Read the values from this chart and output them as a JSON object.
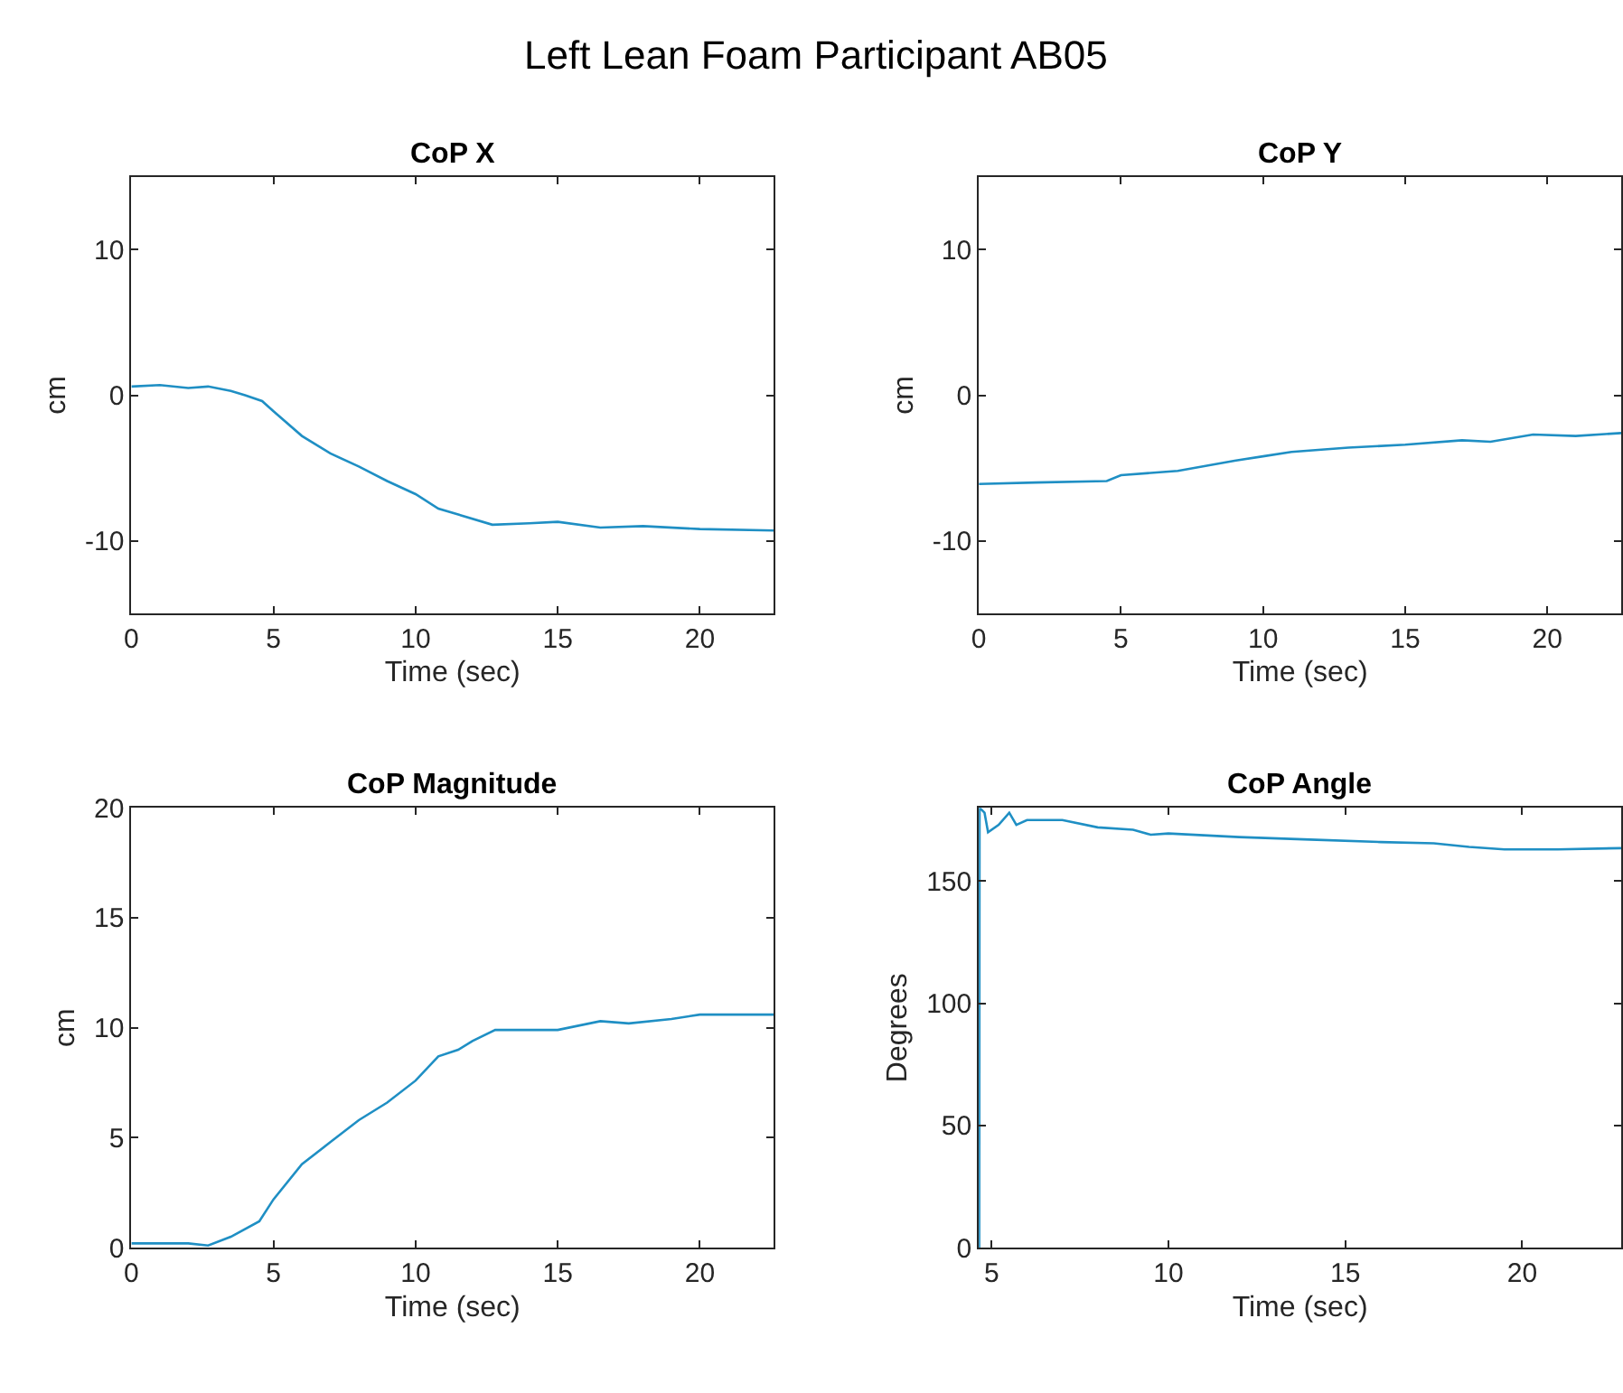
{
  "chart_data": [
    {
      "type": "line",
      "title": "CoP X",
      "xlabel": "Time (sec)",
      "ylabel": "cm",
      "annotations": [
        "Left Lean Foam Participant AB05"
      ],
      "xlim": [
        0,
        22.6
      ],
      "ylim": [
        -15,
        15
      ],
      "xticks": [
        0,
        5,
        10,
        15,
        20
      ],
      "yticks": [
        -10,
        0,
        10
      ],
      "grid": false,
      "series": [
        {
          "color": "#1f8fc4",
          "x": [
            0,
            1,
            2,
            2.7,
            3.5,
            4,
            4.6,
            5,
            6,
            7,
            8,
            9,
            10,
            10.8,
            11.5,
            12.7,
            14,
            15,
            16.5,
            18,
            20,
            22.6
          ],
          "values": [
            0.6,
            0.7,
            0.5,
            0.6,
            0.3,
            0,
            -0.4,
            -1.1,
            -2.8,
            -4,
            -4.9,
            -5.9,
            -6.8,
            -7.8,
            -8.2,
            -8.9,
            -8.8,
            -8.7,
            -9.1,
            -9,
            -9.2,
            -9.3
          ]
        }
      ]
    },
    {
      "type": "line",
      "title": "CoP Y",
      "xlabel": "Time (sec)",
      "ylabel": "cm",
      "xlim": [
        0,
        22.6
      ],
      "ylim": [
        -15,
        15
      ],
      "xticks": [
        0,
        5,
        10,
        15,
        20
      ],
      "yticks": [
        -10,
        0,
        10
      ],
      "grid": false,
      "series": [
        {
          "color": "#1f8fc4",
          "x": [
            0,
            2,
            4.5,
            5,
            7,
            9,
            10,
            11,
            13,
            15,
            17,
            18,
            19.5,
            21,
            22.6
          ],
          "values": [
            -6.1,
            -6.0,
            -5.9,
            -5.5,
            -5.2,
            -4.5,
            -4.2,
            -3.9,
            -3.6,
            -3.4,
            -3.1,
            -3.2,
            -2.7,
            -2.8,
            -2.6
          ]
        }
      ]
    },
    {
      "type": "line",
      "title": "CoP Magnitude",
      "xlabel": "Time (sec)",
      "ylabel": "cm",
      "xlim": [
        0,
        22.6
      ],
      "ylim": [
        0,
        20
      ],
      "xticks": [
        0,
        5,
        10,
        15,
        20
      ],
      "yticks": [
        0,
        5,
        10,
        15,
        20
      ],
      "grid": false,
      "series": [
        {
          "color": "#1f8fc4",
          "x": [
            0,
            1,
            2,
            2.7,
            3.5,
            4.5,
            5,
            6,
            7,
            8,
            9,
            10,
            10.8,
            11.5,
            12,
            12.8,
            14,
            15,
            16.5,
            17.5,
            19,
            20,
            22.6
          ],
          "values": [
            0.2,
            0.2,
            0.2,
            0.1,
            0.5,
            1.2,
            2.2,
            3.8,
            4.8,
            5.8,
            6.6,
            7.6,
            8.7,
            9.0,
            9.4,
            9.9,
            9.9,
            9.9,
            10.3,
            10.2,
            10.4,
            10.6,
            10.6
          ]
        }
      ]
    },
    {
      "type": "line",
      "title": "CoP Angle",
      "xlabel": "Time (sec)",
      "ylabel": "Degrees",
      "xlim": [
        4.64,
        22.8
      ],
      "ylim": [
        0,
        180
      ],
      "xticks": [
        5,
        10,
        15,
        20
      ],
      "yticks": [
        0,
        50,
        100,
        150
      ],
      "grid": false,
      "series": [
        {
          "color": "#1f8fc4",
          "x": [
            4.65,
            4.66,
            4.8,
            4.9,
            5.2,
            5.5,
            5.7,
            6,
            7,
            8,
            9,
            9.5,
            10,
            12,
            14,
            16,
            17.5,
            18.5,
            19.5,
            21,
            22.8
          ],
          "values": [
            0,
            180,
            178,
            170,
            173,
            178,
            173,
            175,
            175,
            172,
            171,
            169,
            169.5,
            168,
            167,
            166,
            165.5,
            164,
            163,
            163,
            163.5
          ]
        }
      ]
    }
  ]
}
